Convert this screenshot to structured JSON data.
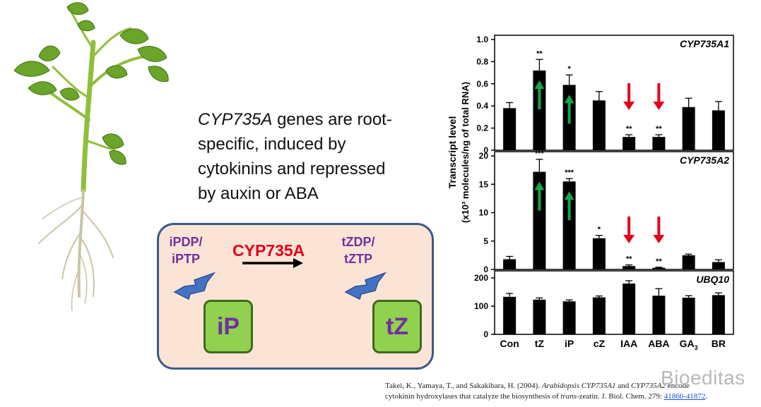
{
  "statement": {
    "gene": "CYP735A",
    "line1_rest": " genes are root-",
    "line2": "specific,  induced by",
    "line3": "cytokinins and repressed",
    "line4": "by auxin or ABA"
  },
  "reaction": {
    "left_precursor_1": "iPDP/",
    "left_precursor_2": "iPTP",
    "enzyme": "CYP735A",
    "right_product_1": "tZDP/",
    "right_product_2": "tZTP",
    "left_cytokinin": "iP",
    "right_cytokinin": "tZ"
  },
  "citation": {
    "part1": "Takei, K., Yamaya, T., and Sakakibara, H. (2004). ",
    "italic1": "Arabidopsis CYP735A1",
    "part2": " and ",
    "italic2": "CYP735A2",
    "part3": " encode",
    "part4": "cytokinin hydroxylases that catalyze the biosynthesis of ",
    "italic3": "trans",
    "part5": "-zeatin. J. Biol. Chem. 279: ",
    "link": "41866-41872",
    "part6": "."
  },
  "watermark": "Bioeditas",
  "chart_data": {
    "type": "bar",
    "categories": [
      "Con",
      "tZ",
      "iP",
      "cZ",
      "IAA",
      "ABA",
      "GA3",
      "BR"
    ],
    "ylabel_line1": "Transcript level",
    "ylabel_line2": "(x10³ molecules/ng of total RNA)",
    "colors": {
      "bar": "#000000",
      "up_arrow": "#16a34a",
      "down_arrow": "#e3001b"
    },
    "panels": [
      {
        "title": "CYP735A1",
        "ylim": [
          0,
          1.0
        ],
        "ticks": [
          0,
          0.2,
          0.4,
          0.6,
          0.8,
          1.0
        ],
        "tick_labels": [
          "0",
          "0.2",
          "0.4",
          "0.6",
          "0.8",
          "1.0"
        ],
        "values": [
          0.38,
          0.72,
          0.59,
          0.45,
          0.12,
          0.12,
          0.39,
          0.36
        ],
        "errors": [
          0.05,
          0.1,
          0.09,
          0.08,
          0.02,
          0.02,
          0.08,
          0.08
        ],
        "significance": [
          "",
          "**",
          "*",
          "",
          "**",
          "**",
          "",
          ""
        ],
        "arrows": [
          "",
          "up",
          "up",
          "",
          "down",
          "down",
          "",
          ""
        ]
      },
      {
        "title": "CYP735A2",
        "ylim": [
          0,
          20
        ],
        "ticks": [
          0,
          5,
          10,
          15,
          20
        ],
        "tick_labels": [
          "0",
          "5",
          "10",
          "15",
          "20"
        ],
        "values": [
          1.8,
          17.2,
          15.5,
          5.5,
          0.6,
          0.3,
          2.5,
          1.3
        ],
        "errors": [
          0.5,
          2.2,
          0.5,
          0.5,
          0.2,
          0.1,
          0.2,
          0.4
        ],
        "significance": [
          "",
          "***",
          "***",
          "*",
          "**",
          "**",
          "",
          ""
        ],
        "arrows": [
          "",
          "up",
          "up",
          "",
          "down",
          "down",
          "",
          ""
        ]
      },
      {
        "title": "UBQ10",
        "ylim": [
          0,
          210
        ],
        "ticks": [
          0,
          100,
          200
        ],
        "tick_labels": [
          "0",
          "100",
          "200"
        ],
        "values": [
          133,
          123,
          117,
          131,
          180,
          137,
          130,
          139
        ],
        "errors": [
          12,
          6,
          5,
          5,
          10,
          25,
          7,
          8
        ],
        "significance": [
          "",
          "",
          "",
          "",
          "",
          "",
          "",
          ""
        ],
        "arrows": [
          "",
          "",
          "",
          "",
          "",
          "",
          "",
          ""
        ]
      }
    ]
  }
}
